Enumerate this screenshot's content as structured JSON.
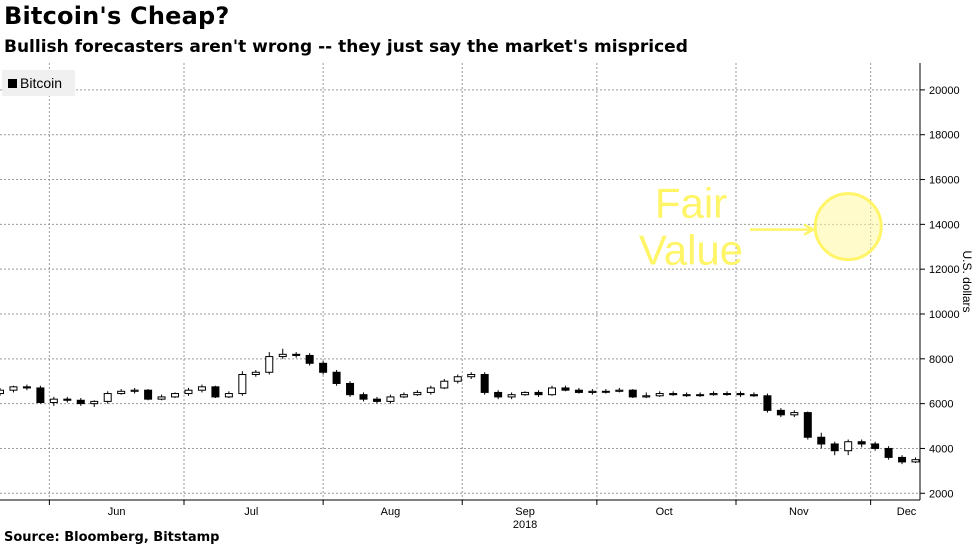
{
  "header": {
    "title": "Bitcoin's Cheap?",
    "subtitle": "Bullish forecasters aren't wrong -- they just say the market's mispriced"
  },
  "footer": {
    "source": "Source: Bloomberg, Bitstamp"
  },
  "chart_data": {
    "type": "candlestick",
    "ylabel": "U.S. dollars",
    "ylim": [
      1700,
      21200
    ],
    "yticks": [
      2000,
      4000,
      6000,
      8000,
      10000,
      12000,
      14000,
      16000,
      18000,
      20000
    ],
    "y_tick_labels": [
      "2000",
      "4000",
      "6000",
      "8000",
      "10000",
      "12000",
      "14000",
      "16000",
      "18000",
      "20000"
    ],
    "y_axis_position": "right",
    "x_range": [
      "2018-05-21",
      "2018-12-12"
    ],
    "x_month_labels": [
      {
        "label": "Jun",
        "date": "2018-06-16"
      },
      {
        "label": "Jul",
        "date": "2018-07-16"
      },
      {
        "label": "Aug",
        "date": "2018-08-16"
      },
      {
        "label": "Sep",
        "date": "2018-09-15"
      },
      {
        "label": "Oct",
        "date": "2018-10-16"
      },
      {
        "label": "Nov",
        "date": "2018-11-15"
      },
      {
        "label": "Dec",
        "date": "2018-12-09"
      }
    ],
    "x_year_label": {
      "label": "2018",
      "date": "2018-09-15"
    },
    "x_gridlines": [
      "2018-06-01",
      "2018-07-01",
      "2018-08-01",
      "2018-09-01",
      "2018-10-01",
      "2018-11-01",
      "2018-12-01"
    ],
    "grid": true,
    "legend": {
      "position": "top-left",
      "entries": [
        "Bitcoin"
      ]
    },
    "series": [
      {
        "name": "Bitcoin",
        "dates": [
          "2018-05-21",
          "2018-05-24",
          "2018-05-27",
          "2018-05-30",
          "2018-06-02",
          "2018-06-05",
          "2018-06-08",
          "2018-06-11",
          "2018-06-14",
          "2018-06-17",
          "2018-06-20",
          "2018-06-23",
          "2018-06-26",
          "2018-06-29",
          "2018-07-02",
          "2018-07-05",
          "2018-07-08",
          "2018-07-11",
          "2018-07-14",
          "2018-07-17",
          "2018-07-20",
          "2018-07-23",
          "2018-07-26",
          "2018-07-29",
          "2018-08-01",
          "2018-08-04",
          "2018-08-07",
          "2018-08-10",
          "2018-08-13",
          "2018-08-16",
          "2018-08-19",
          "2018-08-22",
          "2018-08-25",
          "2018-08-28",
          "2018-08-31",
          "2018-09-03",
          "2018-09-06",
          "2018-09-09",
          "2018-09-12",
          "2018-09-15",
          "2018-09-18",
          "2018-09-21",
          "2018-09-24",
          "2018-09-27",
          "2018-09-30",
          "2018-10-03",
          "2018-10-06",
          "2018-10-09",
          "2018-10-12",
          "2018-10-15",
          "2018-10-18",
          "2018-10-21",
          "2018-10-24",
          "2018-10-27",
          "2018-10-30",
          "2018-11-02",
          "2018-11-05",
          "2018-11-08",
          "2018-11-11",
          "2018-11-14",
          "2018-11-17",
          "2018-11-20",
          "2018-11-23",
          "2018-11-26",
          "2018-11-29",
          "2018-12-02",
          "2018-12-05",
          "2018-12-08",
          "2018-12-11"
        ],
        "open": [
          6450,
          6600,
          6750,
          6700,
          6050,
          6200,
          6150,
          6000,
          6100,
          6450,
          6550,
          6600,
          6200,
          6300,
          6450,
          6600,
          6750,
          6300,
          6450,
          7300,
          7400,
          8100,
          8200,
          8150,
          7800,
          7400,
          6900,
          6400,
          6200,
          6100,
          6300,
          6400,
          6500,
          6700,
          7000,
          7200,
          7300,
          6500,
          6300,
          6400,
          6500,
          6400,
          6700,
          6600,
          6500,
          6550,
          6550,
          6600,
          6300,
          6350,
          6450,
          6400,
          6400,
          6400,
          6450,
          6450,
          6400,
          6350,
          5700,
          5500,
          5600,
          4500,
          4200,
          3900,
          4300,
          4200,
          4000,
          3600,
          3400
        ],
        "close": [
          6600,
          6750,
          6700,
          6050,
          6200,
          6150,
          6000,
          6100,
          6450,
          6550,
          6600,
          6200,
          6300,
          6450,
          6600,
          6750,
          6300,
          6450,
          7300,
          7400,
          8100,
          8200,
          8150,
          7800,
          7400,
          6900,
          6400,
          6200,
          6100,
          6300,
          6400,
          6500,
          6700,
          7000,
          7200,
          7300,
          6500,
          6300,
          6400,
          6500,
          6400,
          6700,
          6600,
          6500,
          6550,
          6550,
          6600,
          6300,
          6350,
          6450,
          6400,
          6400,
          6400,
          6450,
          6450,
          6400,
          6350,
          5700,
          5500,
          5600,
          4500,
          4200,
          3900,
          4300,
          4200,
          4000,
          3600,
          3400,
          3500
        ],
        "high": [
          6700,
          6800,
          6850,
          6800,
          6300,
          6300,
          6250,
          6150,
          6550,
          6650,
          6700,
          6650,
          6400,
          6500,
          6700,
          6850,
          6800,
          6550,
          7450,
          7500,
          8300,
          8450,
          8300,
          8250,
          7900,
          7500,
          7000,
          6500,
          6300,
          6400,
          6500,
          6600,
          6800,
          7100,
          7300,
          7400,
          7400,
          6600,
          6500,
          6550,
          6600,
          6800,
          6800,
          6700,
          6650,
          6650,
          6700,
          6650,
          6500,
          6550,
          6550,
          6500,
          6500,
          6550,
          6550,
          6550,
          6500,
          6450,
          5800,
          5700,
          5650,
          4700,
          4300,
          4400,
          4400,
          4300,
          4100,
          3700,
          3600
        ],
        "low": [
          6350,
          6500,
          6600,
          6000,
          5900,
          6050,
          5900,
          5850,
          6000,
          6400,
          6450,
          6150,
          6150,
          6250,
          6350,
          6500,
          6250,
          6250,
          6350,
          7200,
          7300,
          8000,
          8050,
          7700,
          7300,
          6800,
          6300,
          6100,
          6000,
          6000,
          6250,
          6350,
          6400,
          6650,
          6900,
          7100,
          6400,
          6200,
          6200,
          6350,
          6300,
          6350,
          6550,
          6450,
          6400,
          6450,
          6500,
          6250,
          6250,
          6300,
          6350,
          6300,
          6300,
          6350,
          6350,
          6300,
          6300,
          5600,
          5400,
          5400,
          4400,
          4000,
          3700,
          3700,
          4050,
          3900,
          3500,
          3300,
          3350
        ]
      }
    ],
    "annotations": [
      {
        "text_lines": [
          "Fair",
          "Value"
        ],
        "color": "#FFF566",
        "point": {
          "date": "2018-11-26",
          "value": 13900
        },
        "arrow": true
      }
    ]
  }
}
